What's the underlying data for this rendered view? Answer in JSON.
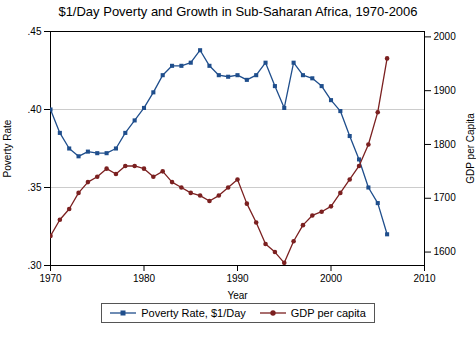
{
  "chart_data": {
    "type": "line",
    "title": "$1/Day Poverty and Growth in Sub-Saharan Africa, 1970-2006",
    "xlabel": "Year",
    "ylabel": "Poverty Rate",
    "y2label": "GDP per Capita",
    "x": [
      1970,
      1971,
      1972,
      1973,
      1974,
      1975,
      1976,
      1977,
      1978,
      1979,
      1980,
      1981,
      1982,
      1983,
      1984,
      1985,
      1986,
      1987,
      1988,
      1989,
      1990,
      1991,
      1992,
      1993,
      1994,
      1995,
      1996,
      1997,
      1998,
      1999,
      2000,
      2001,
      2002,
      2003,
      2004,
      2005,
      2006
    ],
    "series": [
      {
        "name": "Poverty Rate, $1/Day",
        "color": "#1f4e8c",
        "marker": "square",
        "values": [
          0.4,
          0.385,
          0.375,
          0.37,
          0.373,
          0.372,
          0.372,
          0.375,
          0.385,
          0.393,
          0.401,
          0.411,
          0.422,
          0.428,
          0.428,
          0.43,
          0.438,
          0.428,
          0.422,
          0.421,
          0.422,
          0.419,
          0.422,
          0.43,
          0.415,
          0.401,
          0.43,
          0.422,
          0.42,
          0.415,
          0.406,
          0.399,
          0.383,
          0.368,
          0.35,
          0.34,
          0.32
        ]
      },
      {
        "name": "GDP per capita",
        "color": "#7b2020",
        "marker": "circle",
        "axis": "y2",
        "values": [
          1630,
          1660,
          1680,
          1710,
          1730,
          1740,
          1755,
          1745,
          1760,
          1760,
          1755,
          1740,
          1750,
          1730,
          1720,
          1710,
          1705,
          1695,
          1705,
          1720,
          1735,
          1690,
          1655,
          1615,
          1600,
          1580,
          1620,
          1650,
          1668,
          1675,
          1685,
          1710,
          1735,
          1760,
          1800,
          1860,
          1960
        ]
      }
    ],
    "xlim": [
      1970,
      2010
    ],
    "xticks": [
      1970,
      1980,
      1990,
      2000,
      2010
    ],
    "ylim": [
      0.3,
      0.45
    ],
    "yticks": [
      {
        "value": 0.3,
        "label": ".30"
      },
      {
        "value": 0.35,
        "label": ".35"
      },
      {
        "value": 0.4,
        "label": ".40"
      },
      {
        "value": 0.45,
        "label": ".45"
      }
    ],
    "y2lim": [
      1575,
      2010
    ],
    "y2ticks": [
      1600,
      1700,
      1800,
      1900,
      2000
    ],
    "grid": true,
    "legend": "bottom"
  }
}
